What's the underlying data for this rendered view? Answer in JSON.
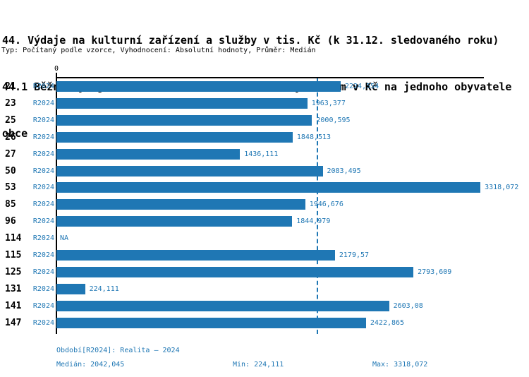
{
  "page": {
    "title_lines": [
      "44. Výdaje na kulturní zařízení a služby v tis. Kč (k 31.12. sledovaného roku)",
      "44.1 Běžné výdaje na kulturní zařízení a služby celkem v Kč na jednoho obyvatele",
      "obce"
    ],
    "meta_line": "Typ: Počítaný podle vzorce, Vyhodnocení: Absolutní hodnoty, Průměr: Medián"
  },
  "chart_data": {
    "type": "bar",
    "orientation": "horizontal",
    "title": "44.1 Běžné výdaje na kulturní zařízení a služby celkem v Kč na jednoho obyvatele obce",
    "x_axis": {
      "zero_tick_label": "0",
      "xlim": [
        0,
        3345
      ],
      "grid": false
    },
    "median_value": 2042.045,
    "categories": [
      "21",
      "23",
      "25",
      "26",
      "27",
      "50",
      "53",
      "85",
      "96",
      "114",
      "115",
      "125",
      "131",
      "141",
      "147"
    ],
    "series": [
      {
        "name": "R2024",
        "values": [
          2224.554,
          1963.377,
          2000.595,
          1848.513,
          1436.111,
          2083.495,
          3318.072,
          1946.676,
          1844.979,
          null,
          2179.57,
          2793.609,
          224.111,
          2603.08,
          2422.865
        ],
        "value_labels": [
          "2224,554",
          "1963,377",
          "2000,595",
          "1848,513",
          "1436,111",
          "2083,495",
          "3318,072",
          "1946,676",
          "1844,979",
          "NA",
          "2179,57",
          "2793,609",
          "224,111",
          "2603,08",
          "2422,865"
        ]
      }
    ],
    "colors": {
      "bar": "#1f77b4",
      "value_text": "#1f77b4",
      "median_line": "#1f77b4",
      "axis": "#000000"
    },
    "legend_position": "none"
  },
  "footer": {
    "period_line": "Období[R2024]: Realita – 2024",
    "median_label": "Medián: 2042,045",
    "min_label": "Min: 224,111",
    "max_label": "Max: 3318,072"
  }
}
